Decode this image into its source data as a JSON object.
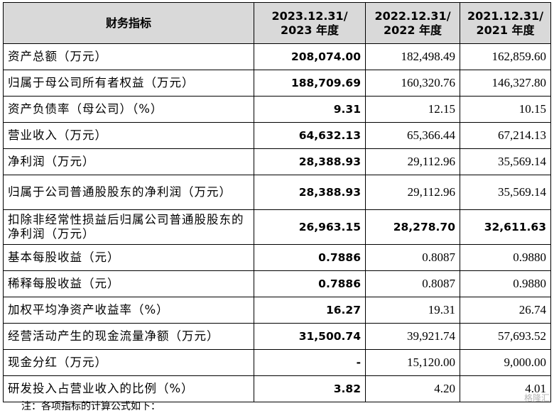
{
  "table": {
    "headers": [
      [
        "财务指标"
      ],
      [
        "2023.12.31/",
        "2023 年度"
      ],
      [
        "2022.12.31/",
        "2022 年度"
      ],
      [
        "2021.12.31/",
        "2021 年度"
      ]
    ],
    "rows": [
      {
        "label": "资产总额（万元）",
        "values": [
          "208,074.00",
          "182,498.49",
          "162,859.60"
        ],
        "bold": [
          true,
          false,
          false
        ],
        "tall": false
      },
      {
        "label": "归属于母公司所有者权益（万元）",
        "values": [
          "188,709.69",
          "160,320.76",
          "146,327.80"
        ],
        "bold": [
          true,
          false,
          false
        ],
        "tall": false
      },
      {
        "label": "资产负债率（母公司）（%）",
        "values": [
          "9.31",
          "12.15",
          "10.15"
        ],
        "bold": [
          true,
          false,
          false
        ],
        "tall": false
      },
      {
        "label": "营业收入（万元）",
        "values": [
          "64,632.13",
          "65,366.44",
          "67,214.13"
        ],
        "bold": [
          true,
          false,
          false
        ],
        "tall": false
      },
      {
        "label": "净利润（万元）",
        "values": [
          "28,388.93",
          "29,112.96",
          "35,569.14"
        ],
        "bold": [
          true,
          false,
          false
        ],
        "tall": false
      },
      {
        "label": "归属于公司普通股股东的净利润（万元）",
        "values": [
          "28,388.93",
          "29,112.96",
          "35,569.14"
        ],
        "bold": [
          true,
          false,
          false
        ],
        "tall": true
      },
      {
        "label": "扣除非经常性损益后归属公司普通股股东的净利润（万元）",
        "values": [
          "26,963.15",
          "28,278.70",
          "32,611.63"
        ],
        "bold": [
          true,
          true,
          true
        ],
        "tall": true
      },
      {
        "label": "基本每股收益（元）",
        "values": [
          "0.7886",
          "0.8087",
          "0.9880"
        ],
        "bold": [
          true,
          false,
          false
        ],
        "tall": false
      },
      {
        "label": "稀释每股收益（元）",
        "values": [
          "0.7886",
          "0.8087",
          "0.9880"
        ],
        "bold": [
          true,
          false,
          false
        ],
        "tall": false
      },
      {
        "label": "加权平均净资产收益率（%）",
        "values": [
          "16.27",
          "19.31",
          "26.74"
        ],
        "bold": [
          true,
          false,
          false
        ],
        "tall": false
      },
      {
        "label": "经营活动产生的现金流量净额（万元）",
        "values": [
          "31,500.74",
          "39,921.74",
          "57,693.52"
        ],
        "bold": [
          true,
          false,
          false
        ],
        "tall": false
      },
      {
        "label": "现金分红（万元）",
        "values": [
          "-",
          "15,120.00",
          "9,000.00"
        ],
        "bold": [
          true,
          false,
          false
        ],
        "tall": false
      },
      {
        "label": "研发投入占营业收入的比例（%）",
        "values": [
          "3.82",
          "4.20",
          "4.01"
        ],
        "bold": [
          true,
          false,
          false
        ],
        "tall": false
      }
    ]
  },
  "footer": {
    "note": "注：各项指标的计算公式如下："
  },
  "watermark": {
    "text": "格隆汇"
  }
}
